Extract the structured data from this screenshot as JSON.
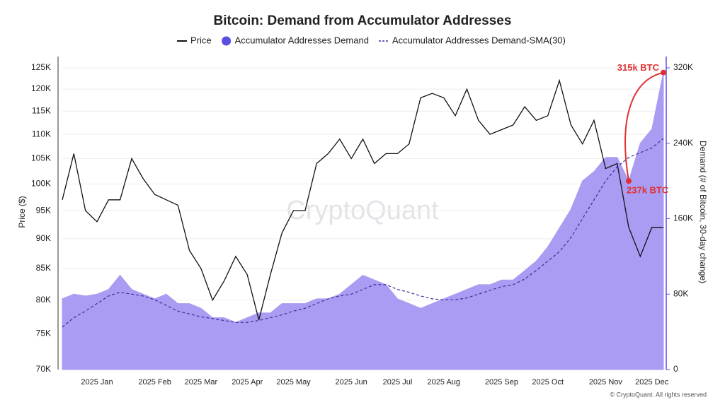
{
  "chart_data": {
    "type": "line",
    "title": "Bitcoin: Demand from Accumulator Addresses",
    "watermark": "CryptoQuant",
    "copyright": "© CryptoQuant. All rights reserved",
    "ylabel": "Price ($)",
    "y2label": "Demand (# of Bitcoin, 30-day change)",
    "categories": [
      null,
      null,
      null,
      "2025 Jan",
      null,
      null,
      null,
      null,
      "2025 Feb",
      null,
      null,
      null,
      "2025 Mar",
      null,
      null,
      null,
      "2025 Apr",
      null,
      null,
      null,
      "2025 May",
      null,
      null,
      null,
      null,
      "2025 Jun",
      null,
      null,
      null,
      "2025 Jul",
      null,
      null,
      null,
      "2025 Aug",
      null,
      null,
      null,
      null,
      "2025 Sep",
      null,
      null,
      null,
      "2025 Oct",
      null,
      null,
      null,
      null,
      "2025 Nov",
      null,
      null,
      null,
      "2025 Dec",
      null
    ],
    "ylim": [
      70000,
      125000
    ],
    "log_y": true,
    "yticks": [
      {
        "value": 70000,
        "label": "70K"
      },
      {
        "value": 75000,
        "label": "75K"
      },
      {
        "value": 80000,
        "label": "80K"
      },
      {
        "value": 85000,
        "label": "85K"
      },
      {
        "value": 90000,
        "label": "90K"
      },
      {
        "value": 95000,
        "label": "95K"
      },
      {
        "value": 100000,
        "label": "100K"
      },
      {
        "value": 105000,
        "label": "105K"
      },
      {
        "value": 110000,
        "label": "110K"
      },
      {
        "value": 115000,
        "label": "115K"
      },
      {
        "value": 120000,
        "label": "120K"
      },
      {
        "value": 125000,
        "label": "125K"
      }
    ],
    "y2lim": [
      0,
      320000
    ],
    "y2ticks": [
      0,
      {
        "value": 80000,
        "label": "80K"
      },
      {
        "value": 160000,
        "label": "160K"
      },
      {
        "value": 240000,
        "label": "240K"
      },
      {
        "value": 320000,
        "label": "320K"
      }
    ],
    "grid": true,
    "series": [
      {
        "name": "Price",
        "color": "#111111",
        "style": "line",
        "values": [
          97000,
          106000,
          95000,
          93000,
          97000,
          97000,
          105000,
          101000,
          98000,
          97000,
          96000,
          88000,
          85000,
          80000,
          83000,
          87000,
          84000,
          77000,
          84000,
          91000,
          95000,
          95000,
          104000,
          106000,
          109000,
          105000,
          109000,
          104000,
          106000,
          106000,
          108000,
          118000,
          119000,
          118000,
          114000,
          120000,
          113000,
          110000,
          111000,
          112000,
          116000,
          113000,
          114000,
          122000,
          112000,
          108000,
          113000,
          103000,
          104000,
          92000,
          87000,
          92000,
          92000
        ]
      },
      {
        "name": "Accumulator Addresses Demand",
        "color": "#5b4ee0",
        "fill": "#a99cf2",
        "style": "area",
        "axis": "y2",
        "values": [
          75000,
          80000,
          78000,
          80000,
          85000,
          100000,
          85000,
          80000,
          75000,
          80000,
          70000,
          70000,
          65000,
          55000,
          55000,
          50000,
          55000,
          60000,
          60000,
          70000,
          70000,
          70000,
          75000,
          75000,
          80000,
          90000,
          100000,
          95000,
          90000,
          75000,
          70000,
          65000,
          70000,
          75000,
          80000,
          85000,
          90000,
          90000,
          95000,
          95000,
          105000,
          115000,
          130000,
          150000,
          170000,
          200000,
          210000,
          225000,
          225000,
          200000,
          240000,
          255000,
          315000
        ]
      },
      {
        "name": "Accumulator Addresses Demand-SMA(30)",
        "color": "#3b2f9e",
        "style": "dashed",
        "axis": "y2",
        "values": [
          45000,
          55000,
          62000,
          70000,
          78000,
          82000,
          80000,
          78000,
          74000,
          68000,
          62000,
          59000,
          56000,
          54000,
          52000,
          50000,
          50000,
          52000,
          55000,
          58000,
          62000,
          65000,
          70000,
          75000,
          78000,
          80000,
          85000,
          90000,
          90000,
          85000,
          82000,
          78000,
          75000,
          74000,
          74000,
          76000,
          80000,
          84000,
          88000,
          90000,
          96000,
          105000,
          115000,
          125000,
          140000,
          160000,
          180000,
          200000,
          215000,
          225000,
          230000,
          235000,
          245000
        ]
      }
    ],
    "annotations": [
      {
        "text": "315k BTC",
        "color": "#e03131"
      },
      {
        "text": "237k BTC",
        "color": "#e03131"
      }
    ]
  }
}
